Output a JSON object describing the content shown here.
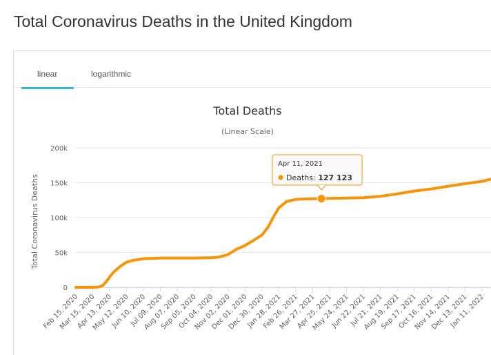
{
  "page": {
    "title": "Total Coronavirus Deaths in the United Kingdom"
  },
  "tabs": [
    {
      "label": "linear",
      "active": true
    },
    {
      "label": "logarithmic",
      "active": false
    }
  ],
  "colors": {
    "series": "#f89406",
    "tab_active": "#33b5e5",
    "grid": "#e6e6e6"
  },
  "tooltip": {
    "date": "Apr 11, 2021",
    "series_label": "Deaths:",
    "value_text": "127 123",
    "x": "2021-04-11",
    "y": 127123
  },
  "chart_data": {
    "type": "line",
    "title": "Total Deaths",
    "subtitle": "(Linear Scale)",
    "ylabel": "Total Coronavirus Deaths",
    "xlabel": "",
    "ylim": [
      0,
      200000
    ],
    "xlim": [
      "2020-02-15",
      "2022-02-05"
    ],
    "yticks": [
      0,
      50000,
      100000,
      150000,
      200000
    ],
    "ytick_labels": [
      "0",
      "50k",
      "100k",
      "150k",
      "200k"
    ],
    "grid": true,
    "xtick_dates": [
      "2020-02-15",
      "2020-03-15",
      "2020-04-13",
      "2020-05-12",
      "2020-06-10",
      "2020-07-09",
      "2020-08-07",
      "2020-09-05",
      "2020-10-04",
      "2020-11-02",
      "2020-12-01",
      "2020-12-30",
      "2021-01-28",
      "2021-02-26",
      "2021-03-27",
      "2021-04-25",
      "2021-05-24",
      "2021-06-22",
      "2021-07-21",
      "2021-08-19",
      "2021-09-17",
      "2021-10-16",
      "2021-11-14",
      "2021-12-13",
      "2022-01-11"
    ],
    "xtick_labels": [
      "Feb 15, 2020",
      "Mar 15, 2020",
      "Apr 13, 2020",
      "May 12, 2020",
      "Jun 10, 2020",
      "Jul 09, 2020",
      "Aug 07, 2020",
      "Sep 05, 2020",
      "Oct 04, 2020",
      "Nov 02, 2020",
      "Dec 01, 2020",
      "Dec 30, 2020",
      "Jan 28, 2021",
      "Feb 26, 2021",
      "Mar 27, 2021",
      "Apr 25, 2021",
      "May 24, 2021",
      "Jun 22, 2021",
      "Jul 21, 2021",
      "Aug 19, 2021",
      "Sep 17, 2021",
      "Oct 16, 2021",
      "Nov 14, 2021",
      "Dec 13, 2021",
      "Jan 11, 2022"
    ],
    "series": [
      {
        "x": [
          "2020-02-15",
          "2020-03-01",
          "2020-03-15",
          "2020-03-25",
          "2020-04-01",
          "2020-04-08",
          "2020-04-13",
          "2020-04-20",
          "2020-05-01",
          "2020-05-12",
          "2020-05-25",
          "2020-06-10",
          "2020-07-09",
          "2020-08-07",
          "2020-09-05",
          "2020-09-20",
          "2020-10-04",
          "2020-10-18",
          "2020-11-02",
          "2020-11-15",
          "2020-12-01",
          "2020-12-15",
          "2020-12-30",
          "2021-01-10",
          "2021-01-20",
          "2021-01-28",
          "2021-02-10",
          "2021-02-26",
          "2021-03-10",
          "2021-03-27",
          "2021-04-11",
          "2021-04-25",
          "2021-05-24",
          "2021-06-22",
          "2021-07-21",
          "2021-08-19",
          "2021-09-17",
          "2021-10-16",
          "2021-11-14",
          "2021-12-13",
          "2022-01-11",
          "2022-02-05"
        ],
        "y": [
          0,
          0,
          0,
          500,
          2500,
          9000,
          15000,
          22000,
          30000,
          36000,
          39000,
          41000,
          42000,
          42000,
          42000,
          42200,
          42500,
          43500,
          47000,
          54000,
          60000,
          67000,
          75000,
          87000,
          103000,
          114000,
          123000,
          126000,
          126500,
          127000,
          127123,
          127500,
          128000,
          128500,
          130500,
          134000,
          138000,
          141000,
          145000,
          148500,
          152000,
          157000
        ]
      }
    ]
  }
}
